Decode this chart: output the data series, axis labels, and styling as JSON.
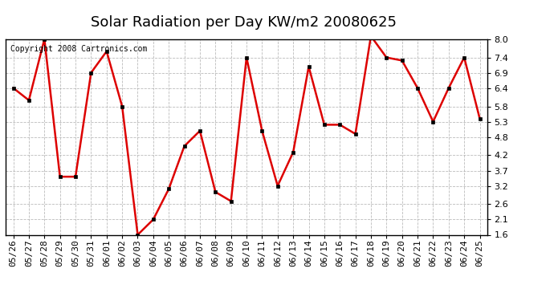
{
  "title": "Solar Radiation per Day KW/m2 20080625",
  "copyright_text": "Copyright 2008 Cartronics.com",
  "dates": [
    "05/26",
    "05/27",
    "05/28",
    "05/29",
    "05/30",
    "05/31",
    "06/01",
    "06/02",
    "06/03",
    "06/04",
    "06/05",
    "06/06",
    "06/07",
    "06/08",
    "06/09",
    "06/10",
    "06/11",
    "06/12",
    "06/13",
    "06/14",
    "06/15",
    "06/16",
    "06/17",
    "06/18",
    "06/19",
    "06/20",
    "06/21",
    "06/22",
    "06/23",
    "06/24",
    "06/25"
  ],
  "values": [
    6.4,
    6.0,
    8.0,
    3.5,
    3.5,
    6.9,
    7.6,
    5.8,
    1.6,
    2.1,
    3.1,
    4.5,
    5.0,
    3.0,
    2.7,
    7.4,
    5.0,
    3.2,
    4.3,
    7.1,
    5.2,
    5.2,
    4.9,
    8.1,
    7.4,
    7.3,
    6.4,
    5.3,
    6.4,
    7.4,
    5.4
  ],
  "line_color": "#dd0000",
  "marker_color": "#000000",
  "bg_color": "#ffffff",
  "plot_bg_color": "#ffffff",
  "grid_color": "#aaaaaa",
  "border_color": "#000000",
  "ylim_min": 1.6,
  "ylim_max": 8.0,
  "yticks": [
    1.6,
    2.1,
    2.6,
    3.2,
    3.7,
    4.2,
    4.8,
    5.3,
    5.8,
    6.4,
    6.9,
    7.4,
    8.0
  ],
  "title_fontsize": 13,
  "tick_fontsize": 8,
  "copyright_fontsize": 7
}
